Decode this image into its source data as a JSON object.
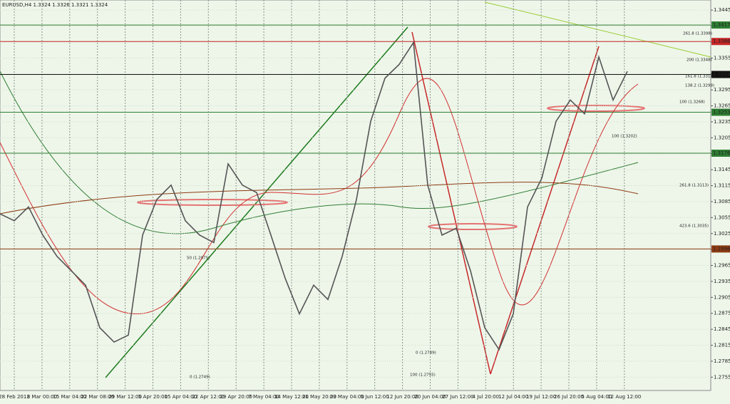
{
  "chart_data": {
    "type": "line",
    "title": "EURUSD,H4 1.3324 1.3326 1.3321 1.3324",
    "ylim": [
      1.273,
      1.3464
    ],
    "yticks": [
      1.3445,
      1.3415,
      1.3385,
      1.3355,
      1.3325,
      1.3295,
      1.3265,
      1.3235,
      1.3205,
      1.3175,
      1.3145,
      1.3115,
      1.3085,
      1.3055,
      1.3025,
      1.2995,
      1.2965,
      1.2935,
      1.2905,
      1.2875,
      1.2845,
      1.2815,
      1.2785,
      1.2755
    ],
    "x_labels": [
      "28 Feb 2013",
      "8 Mar 00:00",
      "15 Mar 04:00",
      "22 Mar 08:00",
      "29 Mar 12:00",
      "5 Apr 20:00",
      "15 Apr 04:00",
      "22 Apr 12:00",
      "29 Apr 20:00",
      "7 May 04:00",
      "14 May 12:00",
      "21 May 20:00",
      "29 May 04:00",
      "5 Jun 12:00",
      "12 Jun 20:00",
      "20 Jun 04:00",
      "27 Jun 12:00",
      "4 Jul 20:00",
      "12 Jul 04:00",
      "19 Jul 12:00",
      "26 Jul 20:00",
      "5 Aug 04:00",
      "12 Aug 12:00"
    ],
    "series": [
      {
        "name": "EURUSD",
        "color": "#555555",
        "values": [
          1.3062,
          1.3049,
          1.3075,
          1.3022,
          1.2982,
          1.2955,
          1.2928,
          1.2848,
          1.2821,
          1.2834,
          1.3022,
          1.3089,
          1.3116,
          1.3049,
          1.3022,
          1.3008,
          1.3156,
          1.3116,
          1.3102,
          1.3022,
          1.2941,
          1.2874,
          1.2928,
          1.2901,
          1.2982,
          1.3089,
          1.3236,
          1.3317,
          1.3343,
          1.3384,
          1.3116,
          1.3022,
          1.3035,
          1.2955,
          1.2848,
          1.2807,
          1.2874,
          1.3075,
          1.3129,
          1.3236,
          1.3276,
          1.325,
          1.3357,
          1.3276,
          1.333
        ]
      }
    ],
    "levels": [
      {
        "value": 1.3417,
        "color": "#2e7d32"
      },
      {
        "value": 1.3386,
        "color": "#c62828"
      },
      {
        "value": 1.3324,
        "color": "#111111"
      },
      {
        "value": 1.3253,
        "color": "#2e7d32"
      },
      {
        "value": 1.3176,
        "color": "#2e7d32"
      },
      {
        "value": 1.2996,
        "color": "#8d3b12"
      }
    ],
    "annotations": [
      "261.8 (1.3398)",
      "200 (1.3348)",
      "161.8 (1.3318)",
      "138.2 (1.3299)",
      "100 (1.3268)",
      "100 (1.3202)",
      "50 (1.2975)",
      "0 (1.2749)",
      "261.8 (1.3113)",
      "423.6 (1.3035)",
      "0 (1.2749)",
      "100 (1.2755)"
    ]
  }
}
